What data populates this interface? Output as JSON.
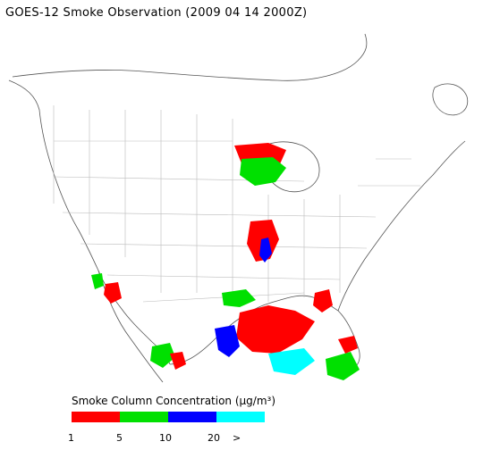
{
  "title": "GOES-12 Smoke Observation (2009 04 14  2000Z)",
  "legend": {
    "title": "Smoke Column Concentration (µg/m³)",
    "segments": [
      {
        "color": "#ff0000",
        "range": "1-5"
      },
      {
        "color": "#00e000",
        "range": "5-10"
      },
      {
        "color": "#0000ff",
        "range": "10-20"
      },
      {
        "color": "#00ffff",
        "range": "20+"
      }
    ],
    "labels": [
      "1",
      "5",
      "10",
      "20",
      ">"
    ]
  }
}
